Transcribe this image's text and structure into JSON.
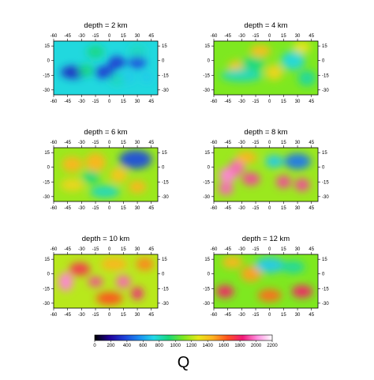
{
  "chart_data": {
    "type": "heatmap",
    "colorbar": {
      "title": "Q",
      "min": 0,
      "max": 2200,
      "ticks": [
        0,
        200,
        400,
        600,
        800,
        1000,
        1200,
        1400,
        1600,
        1800,
        2000,
        2200
      ],
      "tick_labels": [
        "0",
        "200",
        "400",
        "600",
        "800",
        "1000",
        "1200",
        "1400",
        "1600",
        "1800",
        "2000",
        "2200"
      ],
      "colors": [
        "#000000",
        "#20009a",
        "#1e40d8",
        "#1a8cf2",
        "#22d8e8",
        "#18d878",
        "#7ee820",
        "#e8e818",
        "#ffb020",
        "#ff5020",
        "#f01878",
        "#ff90e0",
        "#ffffff"
      ]
    },
    "panels": [
      {
        "title": "depth = 2 km",
        "x_ticks": [
          -60,
          -45,
          -30,
          -15,
          0,
          15,
          30,
          45
        ],
        "y_ticks": [
          15,
          0,
          -15,
          -30
        ],
        "xlim": [
          -60,
          52
        ],
        "ylim": [
          -35,
          20
        ],
        "features": [
          {
            "x": -38,
            "y": -12,
            "q": 300,
            "sx": 9,
            "sy": 4
          },
          {
            "x": -5,
            "y": -12,
            "q": 350,
            "sx": 7,
            "sy": 4
          },
          {
            "x": 8,
            "y": -2,
            "q": 350,
            "sx": 6,
            "sy": 4
          },
          {
            "x": 30,
            "y": -2,
            "q": 400,
            "sx": 6,
            "sy": 4
          },
          {
            "x": 20,
            "y": -17,
            "q": 700,
            "sx": 5,
            "sy": 4
          },
          {
            "x": 40,
            "y": -17,
            "q": 700,
            "sx": 4,
            "sy": 4
          },
          {
            "x": 8,
            "y": -20,
            "q": 800,
            "sx": 5,
            "sy": 4
          },
          {
            "x": -15,
            "y": 9,
            "q": 900,
            "sx": 6,
            "sy": 4
          },
          {
            "x": 30,
            "y": 10,
            "q": 800,
            "sx": 6,
            "sy": 4
          },
          {
            "x": -25,
            "y": -10,
            "q": 900,
            "sx": 5,
            "sy": 4
          }
        ]
      },
      {
        "title": "depth = 4 km",
        "x_ticks": [
          -60,
          -45,
          -30,
          -15,
          0,
          15,
          30,
          45
        ],
        "y_ticks": [
          15,
          0,
          -15,
          -30
        ],
        "xlim": [
          -60,
          52
        ],
        "ylim": [
          -35,
          20
        ],
        "features": [
          {
            "x": -10,
            "y": 10,
            "q": 1420,
            "sx": 7,
            "sy": 4
          },
          {
            "x": -35,
            "y": -6,
            "q": 1400,
            "sx": 6,
            "sy": 4
          },
          {
            "x": 5,
            "y": -12,
            "q": 1350,
            "sx": 6,
            "sy": 5
          },
          {
            "x": -30,
            "y": -15,
            "q": 800,
            "sx": 14,
            "sy": 4
          },
          {
            "x": -18,
            "y": -3,
            "q": 900,
            "sx": 8,
            "sy": 4
          },
          {
            "x": 25,
            "y": 0,
            "q": 750,
            "sx": 8,
            "sy": 6
          },
          {
            "x": 40,
            "y": -18,
            "q": 850,
            "sx": 6,
            "sy": 5
          },
          {
            "x": 35,
            "y": 14,
            "q": 1300,
            "sx": 6,
            "sy": 4
          }
        ]
      },
      {
        "title": "depth = 6 km",
        "x_ticks": [
          -60,
          -45,
          -30,
          -15,
          0,
          15,
          30,
          45
        ],
        "y_ticks": [
          15,
          0,
          -15,
          -30
        ],
        "xlim": [
          -60,
          52
        ],
        "ylim": [
          -35,
          20
        ],
        "features": [
          {
            "x": -40,
            "y": 3,
            "q": 1450,
            "sx": 7,
            "sy": 5
          },
          {
            "x": -15,
            "y": 5,
            "q": 1450,
            "sx": 7,
            "sy": 6
          },
          {
            "x": 10,
            "y": -8,
            "q": 1400,
            "sx": 6,
            "sy": 5
          },
          {
            "x": 30,
            "y": -20,
            "q": 1450,
            "sx": 6,
            "sy": 4
          },
          {
            "x": -40,
            "y": -18,
            "q": 1350,
            "sx": 8,
            "sy": 4
          },
          {
            "x": 28,
            "y": 8,
            "q": 400,
            "sx": 11,
            "sy": 6
          },
          {
            "x": -5,
            "y": -25,
            "q": 800,
            "sx": 10,
            "sy": 4
          },
          {
            "x": -20,
            "y": -10,
            "q": 900,
            "sx": 6,
            "sy": 4
          }
        ]
      },
      {
        "title": "depth = 8 km",
        "x_ticks": [
          -60,
          -45,
          -30,
          -15,
          0,
          15,
          30,
          45
        ],
        "y_ticks": [
          15,
          0,
          -15,
          -30
        ],
        "xlim": [
          -60,
          52
        ],
        "ylim": [
          -35,
          20
        ],
        "features": [
          {
            "x": -45,
            "y": -8,
            "q": 2000,
            "sx": 6,
            "sy": 5
          },
          {
            "x": -35,
            "y": 0,
            "q": 1950,
            "sx": 5,
            "sy": 5
          },
          {
            "x": -20,
            "y": -12,
            "q": 1900,
            "sx": 6,
            "sy": 4
          },
          {
            "x": -47,
            "y": -22,
            "q": 1950,
            "sx": 5,
            "sy": 4
          },
          {
            "x": 15,
            "y": -15,
            "q": 1900,
            "sx": 5,
            "sy": 4
          },
          {
            "x": 35,
            "y": -18,
            "q": 1900,
            "sx": 5,
            "sy": 4
          },
          {
            "x": 30,
            "y": 6,
            "q": 500,
            "sx": 9,
            "sy": 5
          },
          {
            "x": 5,
            "y": 6,
            "q": 700,
            "sx": 6,
            "sy": 4
          },
          {
            "x": -25,
            "y": 10,
            "q": 1450,
            "sx": 7,
            "sy": 4
          }
        ]
      },
      {
        "title": "depth = 10 km",
        "x_ticks": [
          -60,
          -45,
          -30,
          -15,
          0,
          15,
          30,
          45
        ],
        "y_ticks": [
          15,
          0,
          -15,
          -30
        ],
        "xlim": [
          -60,
          52
        ],
        "ylim": [
          -35,
          20
        ],
        "features": [
          {
            "x": -47,
            "y": -8,
            "q": 2000,
            "sx": 5,
            "sy": 6
          },
          {
            "x": -15,
            "y": -8,
            "q": 1900,
            "sx": 5,
            "sy": 3
          },
          {
            "x": 15,
            "y": -8,
            "q": 1950,
            "sx": 5,
            "sy": 4
          },
          {
            "x": 30,
            "y": -20,
            "q": 1850,
            "sx": 4,
            "sy": 4
          },
          {
            "x": -32,
            "y": 5,
            "q": 1750,
            "sx": 7,
            "sy": 4
          },
          {
            "x": 0,
            "y": -25,
            "q": 1650,
            "sx": 9,
            "sy": 4
          },
          {
            "x": 5,
            "y": 10,
            "q": 1450,
            "sx": 9,
            "sy": 4
          },
          {
            "x": 38,
            "y": 10,
            "q": 1550,
            "sx": 6,
            "sy": 4
          }
        ]
      },
      {
        "title": "depth = 12 km",
        "x_ticks": [
          -60,
          -45,
          -30,
          -15,
          0,
          15,
          30,
          45
        ],
        "y_ticks": [
          15,
          0,
          -15,
          -30
        ],
        "xlim": [
          -60,
          52
        ],
        "ylim": [
          -35,
          20
        ],
        "features": [
          {
            "x": -48,
            "y": -18,
            "q": 1800,
            "sx": 6,
            "sy": 4
          },
          {
            "x": 35,
            "y": -18,
            "q": 1800,
            "sx": 7,
            "sy": 4
          },
          {
            "x": 0,
            "y": -22,
            "q": 1600,
            "sx": 8,
            "sy": 4
          },
          {
            "x": -20,
            "y": 0,
            "q": 1500,
            "sx": 7,
            "sy": 5
          },
          {
            "x": 0,
            "y": 9,
            "q": 700,
            "sx": 10,
            "sy": 5
          },
          {
            "x": 25,
            "y": 7,
            "q": 850,
            "sx": 8,
            "sy": 4
          },
          {
            "x": -40,
            "y": 12,
            "q": 1450,
            "sx": 7,
            "sy": 4
          }
        ]
      }
    ]
  }
}
